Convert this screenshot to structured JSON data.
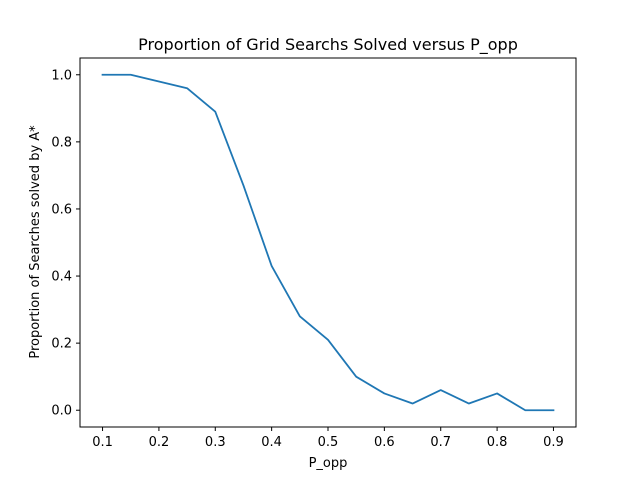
{
  "chart_data": {
    "type": "line",
    "title": "Proportion of Grid Searchs Solved versus P_opp",
    "xlabel": "P_opp",
    "ylabel": "Proportion of Searches solved by A*",
    "xlim": [
      0.06,
      0.94
    ],
    "ylim": [
      -0.05,
      1.05
    ],
    "grid": false,
    "x_ticks": [
      0.1,
      0.2,
      0.3,
      0.4,
      0.5,
      0.6,
      0.7,
      0.8,
      0.9
    ],
    "x_tick_labels": [
      "0.1",
      "0.2",
      "0.3",
      "0.4",
      "0.5",
      "0.6",
      "0.7",
      "0.8",
      "0.9"
    ],
    "y_ticks": [
      0.0,
      0.2,
      0.4,
      0.6,
      0.8,
      1.0
    ],
    "y_tick_labels": [
      "0.0",
      "0.2",
      "0.4",
      "0.6",
      "0.8",
      "1.0"
    ],
    "series": [
      {
        "color": "#1f77b4",
        "x": [
          0.1,
          0.15,
          0.2,
          0.25,
          0.3,
          0.35,
          0.4,
          0.45,
          0.5,
          0.55,
          0.6,
          0.65,
          0.7,
          0.75,
          0.8,
          0.85,
          0.9
        ],
        "y": [
          1.0,
          1.0,
          0.98,
          0.96,
          0.89,
          0.67,
          0.43,
          0.28,
          0.21,
          0.1,
          0.05,
          0.02,
          0.06,
          0.02,
          0.05,
          0.0,
          0.0
        ]
      }
    ]
  }
}
